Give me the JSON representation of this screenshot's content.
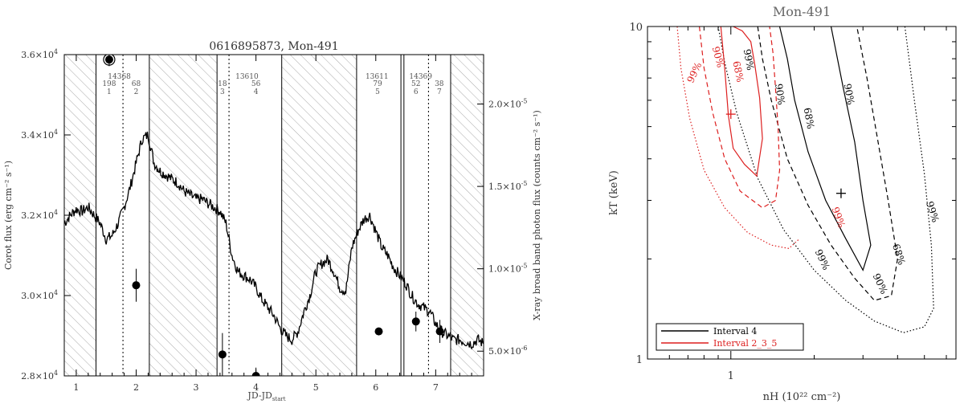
{
  "chart_data": [
    {
      "type": "line",
      "title": "0616895873, Mon-491",
      "xlabel": "JD-JD",
      "xlabel_sub": "start",
      "ylabel_left": "Corot flux (erg cm⁻² s⁻¹)",
      "ylabel_right": "X-ray broad band photon flux (counts cm⁻² s⁻¹)",
      "xlim": [
        0.8,
        7.8
      ],
      "ylim_left": [
        28000,
        36000
      ],
      "ylim_right": [
        3.5e-06,
        2.3e-05
      ],
      "x_ticks": [
        "1",
        "2",
        "3",
        "4",
        "5",
        "6",
        "7"
      ],
      "y_left_ticks": [
        {
          "v": 28000,
          "base": "2.8×10",
          "exp": "4"
        },
        {
          "v": 30000,
          "base": "3.0×10",
          "exp": "4"
        },
        {
          "v": 32000,
          "base": "3.2×10",
          "exp": "4"
        },
        {
          "v": 34000,
          "base": "3.4×10",
          "exp": "4"
        },
        {
          "v": 36000,
          "base": "3.6×10",
          "exp": "4"
        }
      ],
      "y_right_ticks": [
        {
          "v": 5e-06,
          "base": "5.0×10",
          "exp": "-6"
        },
        {
          "v": 1e-05,
          "base": "1.0×10",
          "exp": "-5"
        },
        {
          "v": 1.5e-05,
          "base": "1.5×10",
          "exp": "-5"
        },
        {
          "v": 2e-05,
          "base": "2.0×10",
          "exp": "-5"
        }
      ],
      "grid": false,
      "hatched_intervals": [
        [
          0.8,
          1.33
        ],
        [
          2.22,
          3.35
        ],
        [
          4.43,
          5.68
        ],
        [
          7.25,
          7.8
        ]
      ],
      "solid_lines": [
        1.33,
        2.22,
        3.35,
        4.43,
        5.68,
        6.42,
        6.47,
        7.25
      ],
      "dotted_lines": [
        1.78,
        3.55,
        6.88
      ],
      "obs_labels": [
        {
          "x": 1.72,
          "text": "14368"
        },
        {
          "x": 3.85,
          "text": "13610"
        },
        {
          "x": 6.02,
          "text": "13611"
        },
        {
          "x": 6.75,
          "text": "14369"
        }
      ],
      "interval_labels": [
        {
          "x": 1.55,
          "count": "198",
          "num": "1"
        },
        {
          "x": 2.0,
          "count": "68",
          "num": "2"
        },
        {
          "x": 3.44,
          "count": "18",
          "num": "3"
        },
        {
          "x": 4.0,
          "count": "56",
          "num": "4"
        },
        {
          "x": 6.03,
          "count": "79",
          "num": "5"
        },
        {
          "x": 6.67,
          "count": "52",
          "num": "6"
        },
        {
          "x": 7.06,
          "count": "38",
          "num": "7"
        }
      ],
      "series": [
        {
          "kind": "line",
          "x": [
            0.8,
            0.9,
            1.0,
            1.1,
            1.2,
            1.3,
            1.4,
            1.5,
            1.6,
            1.7,
            1.8,
            1.9,
            2.0,
            2.1,
            2.2,
            2.3,
            2.4,
            2.5,
            2.6,
            2.7,
            2.8,
            2.9,
            3.0,
            3.1,
            3.2,
            3.3,
            3.4,
            3.5,
            3.6,
            3.7,
            3.8,
            3.9,
            4.0,
            4.1,
            4.2,
            4.3,
            4.4,
            4.5,
            4.6,
            4.7,
            4.8,
            4.9,
            5.0,
            5.1,
            5.2,
            5.3,
            5.4,
            5.5,
            5.6,
            5.7,
            5.8,
            5.9,
            6.0,
            6.1,
            6.2,
            6.3,
            6.4,
            6.5,
            6.6,
            6.7,
            6.8,
            6.9,
            7.0,
            7.1,
            7.2,
            7.3,
            7.4,
            7.5,
            7.6,
            7.7,
            7.8
          ],
          "values": [
            31800,
            32000,
            32150,
            32100,
            32200,
            32000,
            31800,
            31400,
            31500,
            31800,
            32200,
            32700,
            33300,
            33900,
            34000,
            33300,
            33100,
            33000,
            32900,
            32800,
            32600,
            32500,
            32400,
            32400,
            32300,
            32200,
            32100,
            31800,
            31000,
            30600,
            30500,
            30400,
            30200,
            29900,
            29700,
            29500,
            29200,
            29000,
            28900,
            29100,
            29600,
            30000,
            30600,
            30800,
            30900,
            30600,
            30200,
            30100,
            31200,
            31600,
            31900,
            32000,
            31600,
            31200,
            31000,
            30700,
            30500,
            30300,
            30000,
            29800,
            29700,
            29600,
            29300,
            29100,
            29000,
            28900,
            28900,
            28850,
            28800,
            28900,
            28800
          ]
        },
        {
          "kind": "points",
          "axis": "right",
          "x": [
            1.55,
            2.0,
            3.44,
            4.0,
            6.05,
            6.67,
            7.07
          ],
          "values": [
            2.27e-05,
            9e-06,
            4.8e-06,
            3.5e-06,
            6.2e-06,
            6.8e-06,
            6.2e-06
          ],
          "yerr": [
            4e-07,
            1e-06,
            1.3e-06,
            5e-07,
            2e-07,
            6e-07,
            7e-07
          ]
        }
      ]
    },
    {
      "type": "line",
      "title": "Mon-491",
      "xlabel": "nH (10²² cm⁻²)",
      "ylabel": "kT (keV)",
      "xscale": "log",
      "yscale": "log",
      "xlim": [
        0.5,
        6.5
      ],
      "ylim": [
        1,
        10
      ],
      "x_ticks": [
        "1"
      ],
      "y_ticks": [
        "1",
        "10"
      ],
      "legend_position": "bottom-left",
      "contour_labels": [
        "99%",
        "90%",
        "68%"
      ],
      "series": [
        {
          "name": "Interval 4",
          "color": "#000000",
          "best_fit": {
            "x": 2.5,
            "y": 3.15
          },
          "contours": [
            {
              "level": "68%",
              "style": "solid",
              "x": [
                1.5,
                1.6,
                1.7,
                1.9,
                2.2,
                2.6,
                3.0,
                3.2,
                3.0,
                2.8,
                2.55,
                2.3
              ],
              "y": [
                10,
                8,
                6,
                4.2,
                3.0,
                2.3,
                1.85,
                2.2,
                3.0,
                4.5,
                6.5,
                10
              ]
            },
            {
              "level": "90%",
              "style": "dashed",
              "x": [
                1.25,
                1.3,
                1.4,
                1.6,
                1.9,
                2.3,
                2.8,
                3.3,
                3.8,
                4.0,
                3.7,
                3.4,
                3.1,
                2.85
              ],
              "y": [
                10,
                8,
                6,
                4.0,
                2.9,
                2.2,
                1.75,
                1.5,
                1.55,
                2.0,
                3.0,
                4.5,
                7,
                10
              ]
            },
            {
              "level": "99%",
              "style": "dotted",
              "x": [
                0.9,
                0.95,
                1.05,
                1.25,
                1.55,
                2.0,
                2.6,
                3.3,
                4.2,
                5.0,
                5.4,
                5.3,
                5.0,
                4.6,
                4.25
              ],
              "y": [
                10,
                7.8,
                5.5,
                3.5,
                2.45,
                1.85,
                1.5,
                1.3,
                1.2,
                1.25,
                1.42,
                2.2,
                3.6,
                6,
                10
              ]
            }
          ]
        },
        {
          "name": "Interval 2_3_5",
          "color": "#dd1f1f",
          "best_fit": {
            "x": 1.0,
            "y": 5.45
          },
          "contours": [
            {
              "level": "68%",
              "style": "solid",
              "x": [
                0.92,
                0.95,
                0.98,
                1.02,
                1.12,
                1.24,
                1.3,
                1.27,
                1.22,
                1.18,
                1.1,
                1.02
              ],
              "y": [
                10,
                7.5,
                5.4,
                4.3,
                3.85,
                3.55,
                4.6,
                6.1,
                7.7,
                9.0,
                9.7,
                10
              ]
            },
            {
              "level": "90%",
              "style": "dashed",
              "x": [
                0.77,
                0.8,
                0.86,
                0.95,
                1.08,
                1.3,
                1.45,
                1.5,
                1.48,
                1.45,
                1.42,
                1.38
              ],
              "y": [
                10,
                7.5,
                5.5,
                4.0,
                3.2,
                2.85,
                3.0,
                3.7,
                5.0,
                6.5,
                8.3,
                10
              ]
            },
            {
              "level": "99%",
              "style": "dotted",
              "x": [
                0.64,
                0.66,
                0.71,
                0.8,
                0.95,
                1.15,
                1.4,
                1.62,
                1.77
              ],
              "y": [
                10,
                7.5,
                5.3,
                3.7,
                2.85,
                2.4,
                2.2,
                2.15,
                2.3
              ]
            }
          ]
        }
      ]
    }
  ]
}
